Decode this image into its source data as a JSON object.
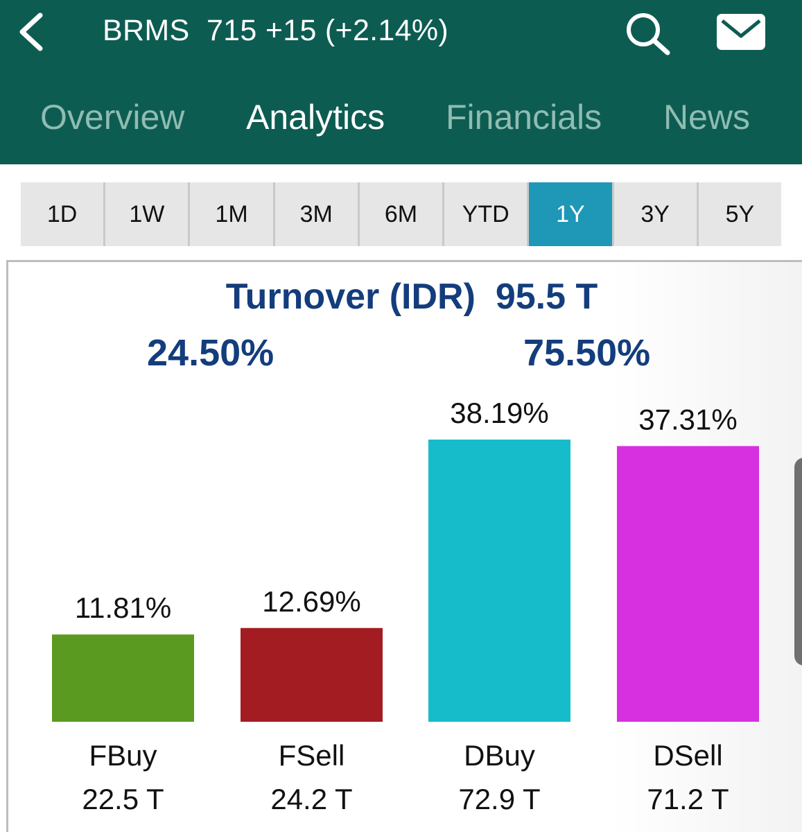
{
  "header": {
    "symbol": "BRMS",
    "quote": "715 +15 (+2.14%)",
    "tabs": [
      {
        "label": "Overview",
        "active": false
      },
      {
        "label": "Analytics",
        "active": true
      },
      {
        "label": "Financials",
        "active": false
      },
      {
        "label": "News",
        "active": false
      }
    ],
    "icons": {
      "back": "chevron-left-icon",
      "search": "search-icon",
      "mail": "mail-icon"
    },
    "color": "#0d5c52"
  },
  "periods": {
    "items": [
      "1D",
      "1W",
      "1M",
      "3M",
      "6M",
      "YTD",
      "1Y",
      "3Y",
      "5Y"
    ],
    "selected": "1Y",
    "accent": "#1f97b7"
  },
  "summary": {
    "turnover_label": "Turnover (IDR)",
    "turnover_value": "95.5 T",
    "foreign_pct": "24.50%",
    "domestic_pct": "75.50%"
  },
  "chart_data": {
    "type": "bar",
    "categories": [
      "FBuy",
      "FSell",
      "DBuy",
      "DSell"
    ],
    "values": [
      11.81,
      12.69,
      38.19,
      37.31
    ],
    "value_labels": [
      "11.81%",
      "12.69%",
      "38.19%",
      "37.31%"
    ],
    "amounts": [
      "22.5 T",
      "24.2 T",
      "72.9 T",
      "71.2 T"
    ],
    "colors": [
      "#5a9a21",
      "#a31c22",
      "#16bcc9",
      "#d630e0"
    ],
    "ylim": [
      0,
      38.19
    ],
    "grid": false,
    "legend": "none"
  }
}
